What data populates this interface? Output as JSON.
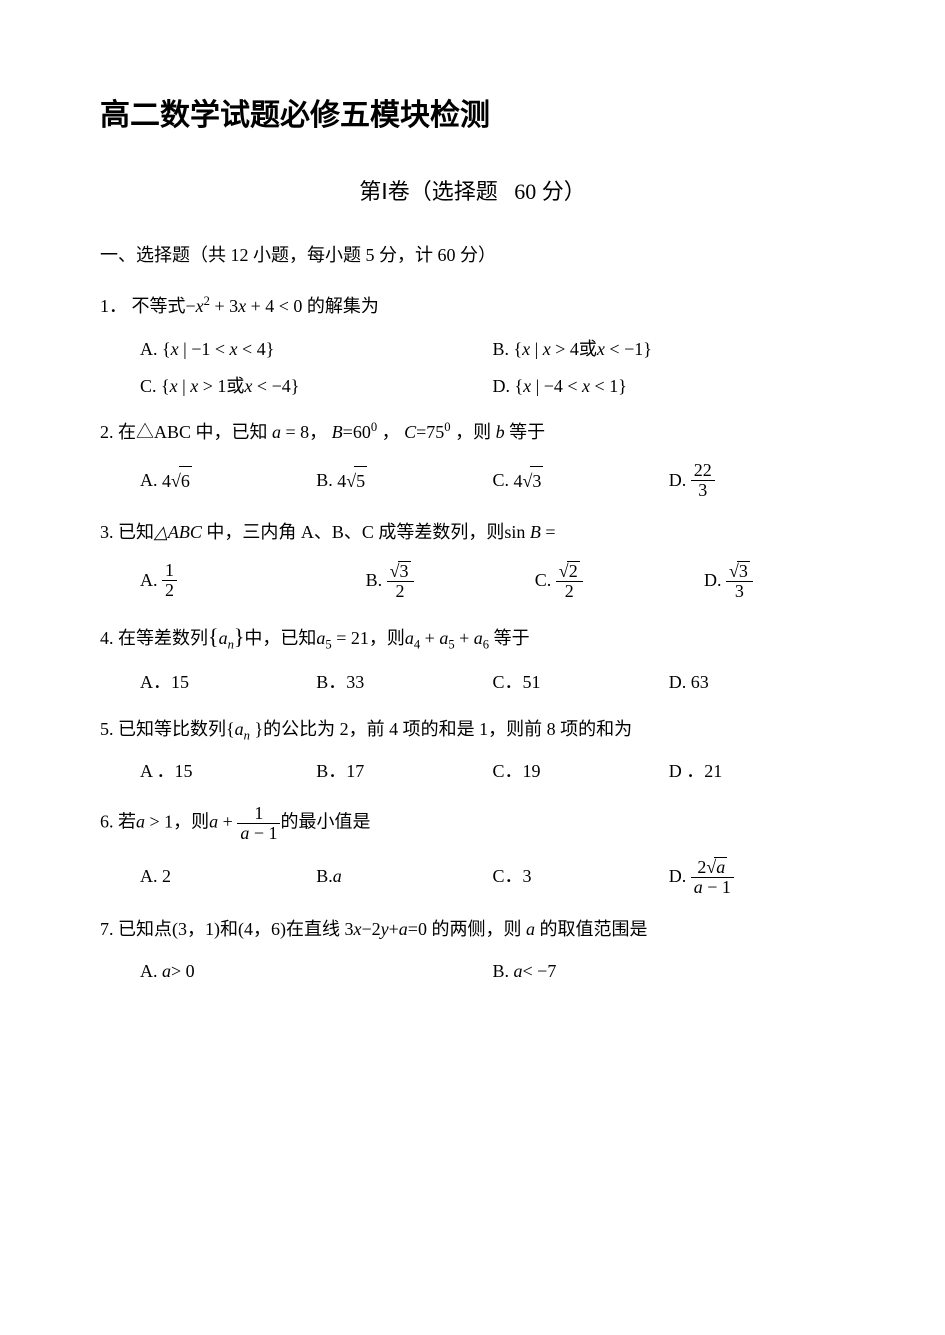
{
  "colors": {
    "text": "#000000",
    "background": "#ffffff"
  },
  "typography": {
    "body_font": "SimSun",
    "title_font": "SimHei",
    "body_size_pt": 14,
    "title_size_pt": 22
  },
  "title": "高二数学试题必修五模块检测",
  "subtitle_prefix": "第Ⅰ卷（选择题",
  "subtitle_points": "60 分）",
  "section_header": "一、选择题（共 12 小题，每小题 5 分，计 60 分）",
  "q1": {
    "num": "1．",
    "stem_pre": "不等式",
    "stem_expr_lead": "−",
    "stem_var": "x",
    "stem_sq": "2",
    "stem_mid": " + 3",
    "stem_var2": "x",
    "stem_tail": " + 4 < 0",
    "stem_post": " 的解集为",
    "optA_label": "A.",
    "optA_pre": "{",
    "optA_x": "x",
    "optA_mid": " | −1 < ",
    "optA_x2": "x",
    "optA_post": " < 4}",
    "optB_label": "B.",
    "optB_pre": "{",
    "optB_x": "x",
    "optB_mid": " | ",
    "optB_x2": "x",
    "optB_post1": " > 4或",
    "optB_x3": "x",
    "optB_post2": " < −1}",
    "optC_label": "C.",
    "optC_pre": "{",
    "optC_x": "x",
    "optC_mid": " | ",
    "optC_x2": "x",
    "optC_post1": " > 1或",
    "optC_x3": "x",
    "optC_post2": " < −4}",
    "optD_label": "D.",
    "optD_pre": "{",
    "optD_x": "x",
    "optD_mid": " | −4 < ",
    "optD_x2": "x",
    "optD_post": " < 1}"
  },
  "q2": {
    "num": "2.",
    "stem_pre": "在△ABC 中，已知",
    "a_var": "a",
    "eq8": " = 8，",
    "B_var": "B",
    "eq60": "=60",
    "deg": "0",
    "comma1": " ，",
    "C_var": "C",
    "eq75": "=75",
    "comma2": " ，则",
    "b_var": "b",
    "post": " 等于",
    "optA": "A.",
    "A4": "4",
    "A_rad": "6",
    "optB": "B.",
    "B4": "4",
    "B_rad": "5",
    "optC": "C.",
    "optC4": "4",
    "C_rad": "3",
    "optD": "D.",
    "D_num": "22",
    "D_den": "3"
  },
  "q3": {
    "num": "3.",
    "stem_pre": "已知",
    "tri": "△ABC",
    "stem_mid": " 中，三内角 A、B、C 成等差数列，则",
    "sin": "sin ",
    "B": "B",
    "eq": " =",
    "optA": "A.",
    "A_num": "1",
    "A_den": "2",
    "optB": "B.",
    "B_rad": "3",
    "B_den": "2",
    "optC": "C.",
    "C_rad": "2",
    "C_den": "2",
    "optD": "D.",
    "D_rad": "3",
    "D_den": "3"
  },
  "q4": {
    "num": "4.",
    "stem_pre": "在等差数列",
    "brace_l": "{",
    "a": "a",
    "n": "n",
    "brace_r": "}",
    "stem_mid": "中，已知",
    "a5": "a",
    "sub5": "5",
    "eq21": " = 21",
    "comma": "，则",
    "a4": "a",
    "s4": "4",
    "plus1": " + ",
    "a5b": "a",
    "s5b": "5",
    "plus2": " + ",
    "a6": "a",
    "s6": "6",
    "post": " 等于",
    "optA": "A．15",
    "optB": "B．33",
    "optC": "C．51",
    "optD": "D. 63"
  },
  "q5": {
    "num": "5.",
    "stem_pre": "已知等比数列{",
    "a": "a",
    "n": "n",
    "stem_mid": " }的公比为 2，前 4 项的和是 1，则前 8 项的和为",
    "optA": "A ．15",
    "optB": "B．17",
    "optC": "C．19",
    "optD": "D ．21"
  },
  "q6": {
    "num": "6.",
    "stem_pre": "若",
    "a": "a",
    "gt1": " > 1",
    "comma": "，则",
    "a2": "a",
    "plus": " + ",
    "num1": "1",
    "den_a": "a",
    "den_m1": " − 1",
    "post": "的最小值是",
    "optA": "A. 2",
    "optB": "B. ",
    "optB_a": "a",
    "optC": "C．3",
    "optD": "D.",
    "D_num2": "2",
    "D_rad": "a",
    "D_den_a": "a",
    "D_den_m1": " − 1"
  },
  "q7": {
    "num": "7.",
    "stem_pre": "已知点(3，1)和(4，6)在直线 3",
    "x": "x",
    "m2": "−2",
    "y": "y",
    "pa": "+",
    "a": "a",
    "eq0": "=0",
    "stem_post": " 的两侧，则 ",
    "a2": "a",
    "post2": " 的取值范围是",
    "optA": "A.",
    "A_a": "a",
    "A_gt": " > 0",
    "optB": "B.",
    "B_a": "a",
    "B_lt": " < −7"
  }
}
